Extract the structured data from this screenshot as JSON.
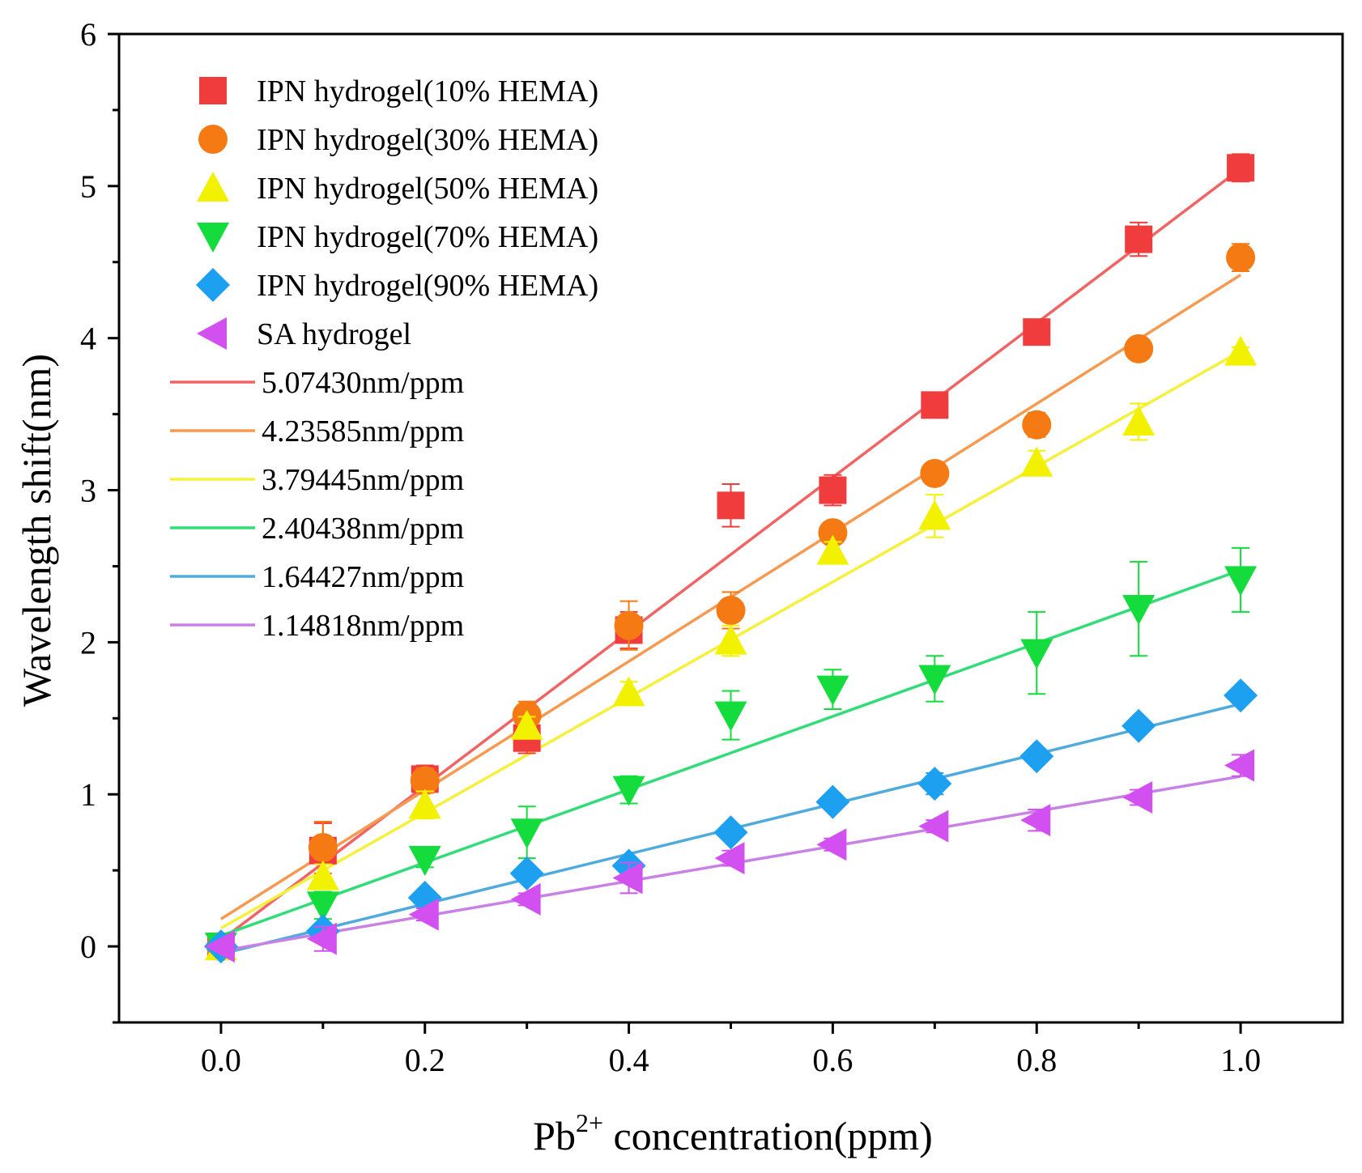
{
  "chart_data": {
    "type": "scatter",
    "xlabel": {
      "main": "Pb",
      "sup": "2+",
      "rest": " concentration(ppm)"
    },
    "ylabel": "Wavelength shift(nm)",
    "xlim": [
      -0.1,
      1.1
    ],
    "ylim": [
      -0.5,
      6
    ],
    "xticks": [
      0.0,
      0.2,
      0.4,
      0.6,
      0.8,
      1.0
    ],
    "xtick_labels": [
      "0.0",
      "0.2",
      "0.4",
      "0.6",
      "0.8",
      "1.0"
    ],
    "yticks": [
      0,
      1,
      2,
      3,
      4,
      5,
      6
    ],
    "ytick_labels": [
      "0",
      "1",
      "2",
      "3",
      "4",
      "5",
      "6"
    ],
    "grid": false,
    "legend_position": "top-left",
    "x": [
      0.0,
      0.1,
      0.2,
      0.3,
      0.4,
      0.5,
      0.6,
      0.7,
      0.8,
      0.9,
      1.0
    ],
    "series": [
      {
        "name": "IPN hydrogel(10% HEMA)",
        "marker": "square",
        "color": "#f03c3c",
        "values": [
          0.0,
          0.63,
          1.1,
          1.37,
          2.08,
          2.9,
          3.0,
          3.56,
          4.04,
          4.65,
          5.12
        ],
        "errors": [
          0.05,
          0.18,
          0.09,
          0.1,
          0.12,
          0.14,
          0.1,
          0.05,
          0.05,
          0.11,
          0.09
        ]
      },
      {
        "name": "IPN hydrogel(30% HEMA)",
        "marker": "circle",
        "color": "#f57a14",
        "values": [
          0.0,
          0.65,
          1.09,
          1.52,
          2.11,
          2.21,
          2.72,
          3.11,
          3.43,
          3.93,
          4.53
        ],
        "errors": [
          0.03,
          0.17,
          0.08,
          0.09,
          0.16,
          0.12,
          0.05,
          0.04,
          0.08,
          0.04,
          0.09
        ]
      },
      {
        "name": "IPN hydrogel(50% HEMA)",
        "marker": "triangle-up",
        "color": "#f2f200",
        "values": [
          0.0,
          0.46,
          0.93,
          1.45,
          1.67,
          2.01,
          2.6,
          2.83,
          3.18,
          3.45,
          3.91
        ],
        "errors": [
          0.03,
          0.08,
          0.09,
          0.06,
          0.07,
          0.1,
          0.06,
          0.14,
          0.08,
          0.12,
          0.03
        ]
      },
      {
        "name": "IPN hydrogel(70% HEMA)",
        "marker": "triangle-down",
        "color": "#14dc3c",
        "values": [
          0.0,
          0.27,
          0.57,
          0.75,
          1.03,
          1.52,
          1.69,
          1.76,
          1.93,
          2.22,
          2.41
        ],
        "errors": [
          0.03,
          0.09,
          0.05,
          0.17,
          0.09,
          0.16,
          0.13,
          0.15,
          0.27,
          0.31,
          0.21
        ]
      },
      {
        "name": "IPN hydrogel(90% HEMA)",
        "marker": "diamond",
        "color": "#1ea0f0",
        "values": [
          0.0,
          0.1,
          0.32,
          0.48,
          0.53,
          0.75,
          0.95,
          1.07,
          1.25,
          1.45,
          1.65
        ],
        "errors": [
          0.02,
          0.04,
          0.04,
          0.05,
          0.04,
          0.05,
          0.05,
          0.07,
          0.05,
          0.05,
          0.04
        ]
      },
      {
        "name": "SA hydrogel",
        "marker": "triangle-left",
        "color": "#d250f0",
        "values": [
          0.0,
          0.05,
          0.21,
          0.31,
          0.45,
          0.58,
          0.67,
          0.79,
          0.83,
          0.98,
          1.19
        ],
        "errors": [
          0.02,
          0.08,
          0.04,
          0.04,
          0.1,
          0.05,
          0.04,
          0.04,
          0.07,
          0.05,
          0.07
        ]
      }
    ],
    "fit_lines": [
      {
        "name": "5.07430nm/ppm",
        "color": "#f06464",
        "slope": 5.0743,
        "intercept": 0.04,
        "x_range": [
          0.0,
          1.0
        ]
      },
      {
        "name": "4.23585nm/ppm",
        "color": "#f59a50",
        "slope": 4.23585,
        "intercept": 0.18,
        "x_range": [
          0.0,
          1.0
        ]
      },
      {
        "name": "3.79445nm/ppm",
        "color": "#f5f03c",
        "slope": 3.79445,
        "intercept": 0.12,
        "x_range": [
          0.0,
          1.0
        ]
      },
      {
        "name": "2.40438nm/ppm",
        "color": "#32dc78",
        "slope": 2.40438,
        "intercept": 0.07,
        "x_range": [
          0.0,
          1.0
        ]
      },
      {
        "name": "1.64427nm/ppm",
        "color": "#50aadc",
        "slope": 1.64427,
        "intercept": -0.05,
        "x_range": [
          0.0,
          1.0
        ]
      },
      {
        "name": "1.14818nm/ppm",
        "color": "#c882e6",
        "slope": 1.14818,
        "intercept": -0.03,
        "x_range": [
          0.0,
          1.0
        ]
      }
    ]
  }
}
